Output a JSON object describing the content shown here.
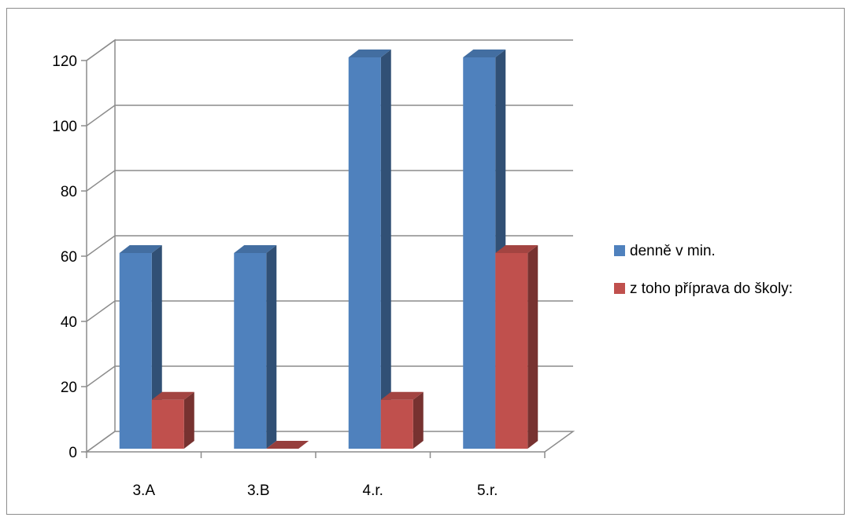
{
  "chart_data": {
    "type": "bar",
    "style": "3d-clustered-column",
    "categories": [
      "3.A",
      "3.B",
      "4.r.",
      "5.r."
    ],
    "series": [
      {
        "name": "denně v min.",
        "values": [
          60,
          60,
          120,
          120
        ],
        "color": "#4f81bd"
      },
      {
        "name": "z toho příprava do školy:",
        "values": [
          15,
          0,
          15,
          60
        ],
        "color": "#c0504d"
      }
    ],
    "ylim": [
      0,
      120
    ],
    "yticks": [
      "0",
      "20",
      "40",
      "60",
      "80",
      "100",
      "120"
    ],
    "grid": true,
    "legend": "right",
    "title": "",
    "xlabel": "",
    "ylabel": ""
  }
}
